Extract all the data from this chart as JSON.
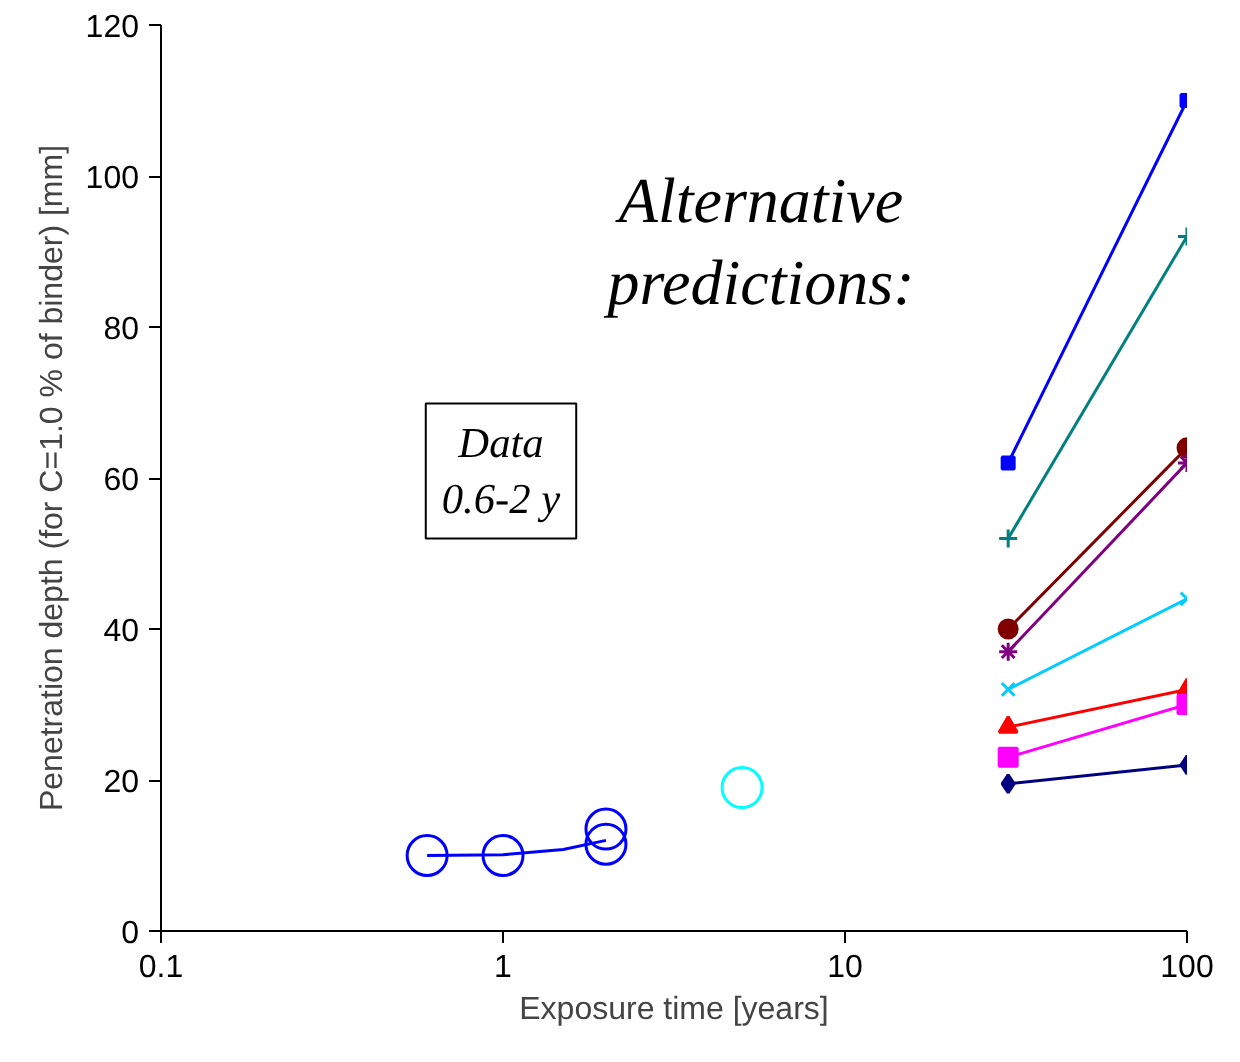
{
  "chart_data": {
    "type": "line",
    "xlabel": "Exposure time [years]",
    "ylabel": "Penetration depth (for C=1.0 % of binder) [mm]",
    "log": "x",
    "xlim": [
      0.1,
      100
    ],
    "xticks": [
      0.1,
      1,
      10,
      100
    ],
    "ylim": [
      0,
      120
    ],
    "yticks": [
      0,
      20,
      40,
      60,
      80,
      100,
      120
    ],
    "grid": false,
    "annotations": [
      "Alternative\npredictions:",
      "Data\n0.6-2 y"
    ],
    "series": [
      {
        "type": "scatter",
        "marker": "circle",
        "color": "#0000ff",
        "x": [
          0.6,
          1,
          2,
          2
        ],
        "values": [
          10,
          10,
          13.5,
          11.5
        ]
      },
      {
        "type": "line",
        "marker": "none",
        "color": "#0000ff",
        "x": [
          0.6,
          1,
          1.5,
          2
        ],
        "values": [
          10,
          10.1,
          10.8,
          12
        ]
      },
      {
        "type": "scatter",
        "marker": "circle",
        "color": "#00ffff",
        "x": [
          5
        ],
        "values": [
          19
        ]
      },
      {
        "marker": "square",
        "color": "#0000ff",
        "x": [
          30,
          100
        ],
        "values": [
          62,
          110
        ]
      },
      {
        "marker": "cross",
        "color": "#008080",
        "x": [
          30,
          100
        ],
        "values": [
          52,
          92
        ]
      },
      {
        "marker": "circle",
        "color": "#800000",
        "x": [
          30,
          100
        ],
        "values": [
          40,
          64
        ]
      },
      {
        "marker": "cross",
        "color": "#800080",
        "x": [
          30,
          100
        ],
        "values": [
          37,
          62
        ]
      },
      {
        "marker": "x",
        "color": "#00ccff",
        "x": [
          30,
          100
        ],
        "values": [
          32,
          44
        ]
      },
      {
        "marker": "triangle",
        "color": "#ff0000",
        "x": [
          30,
          100
        ],
        "values": [
          27,
          32
        ]
      },
      {
        "marker": "square",
        "color": "#ff00ff",
        "x": [
          30,
          100
        ],
        "values": [
          23,
          30
        ]
      },
      {
        "marker": "diamond",
        "color": "#000080",
        "x": [
          30,
          100
        ],
        "values": [
          19.5,
          22
        ]
      }
    ]
  }
}
